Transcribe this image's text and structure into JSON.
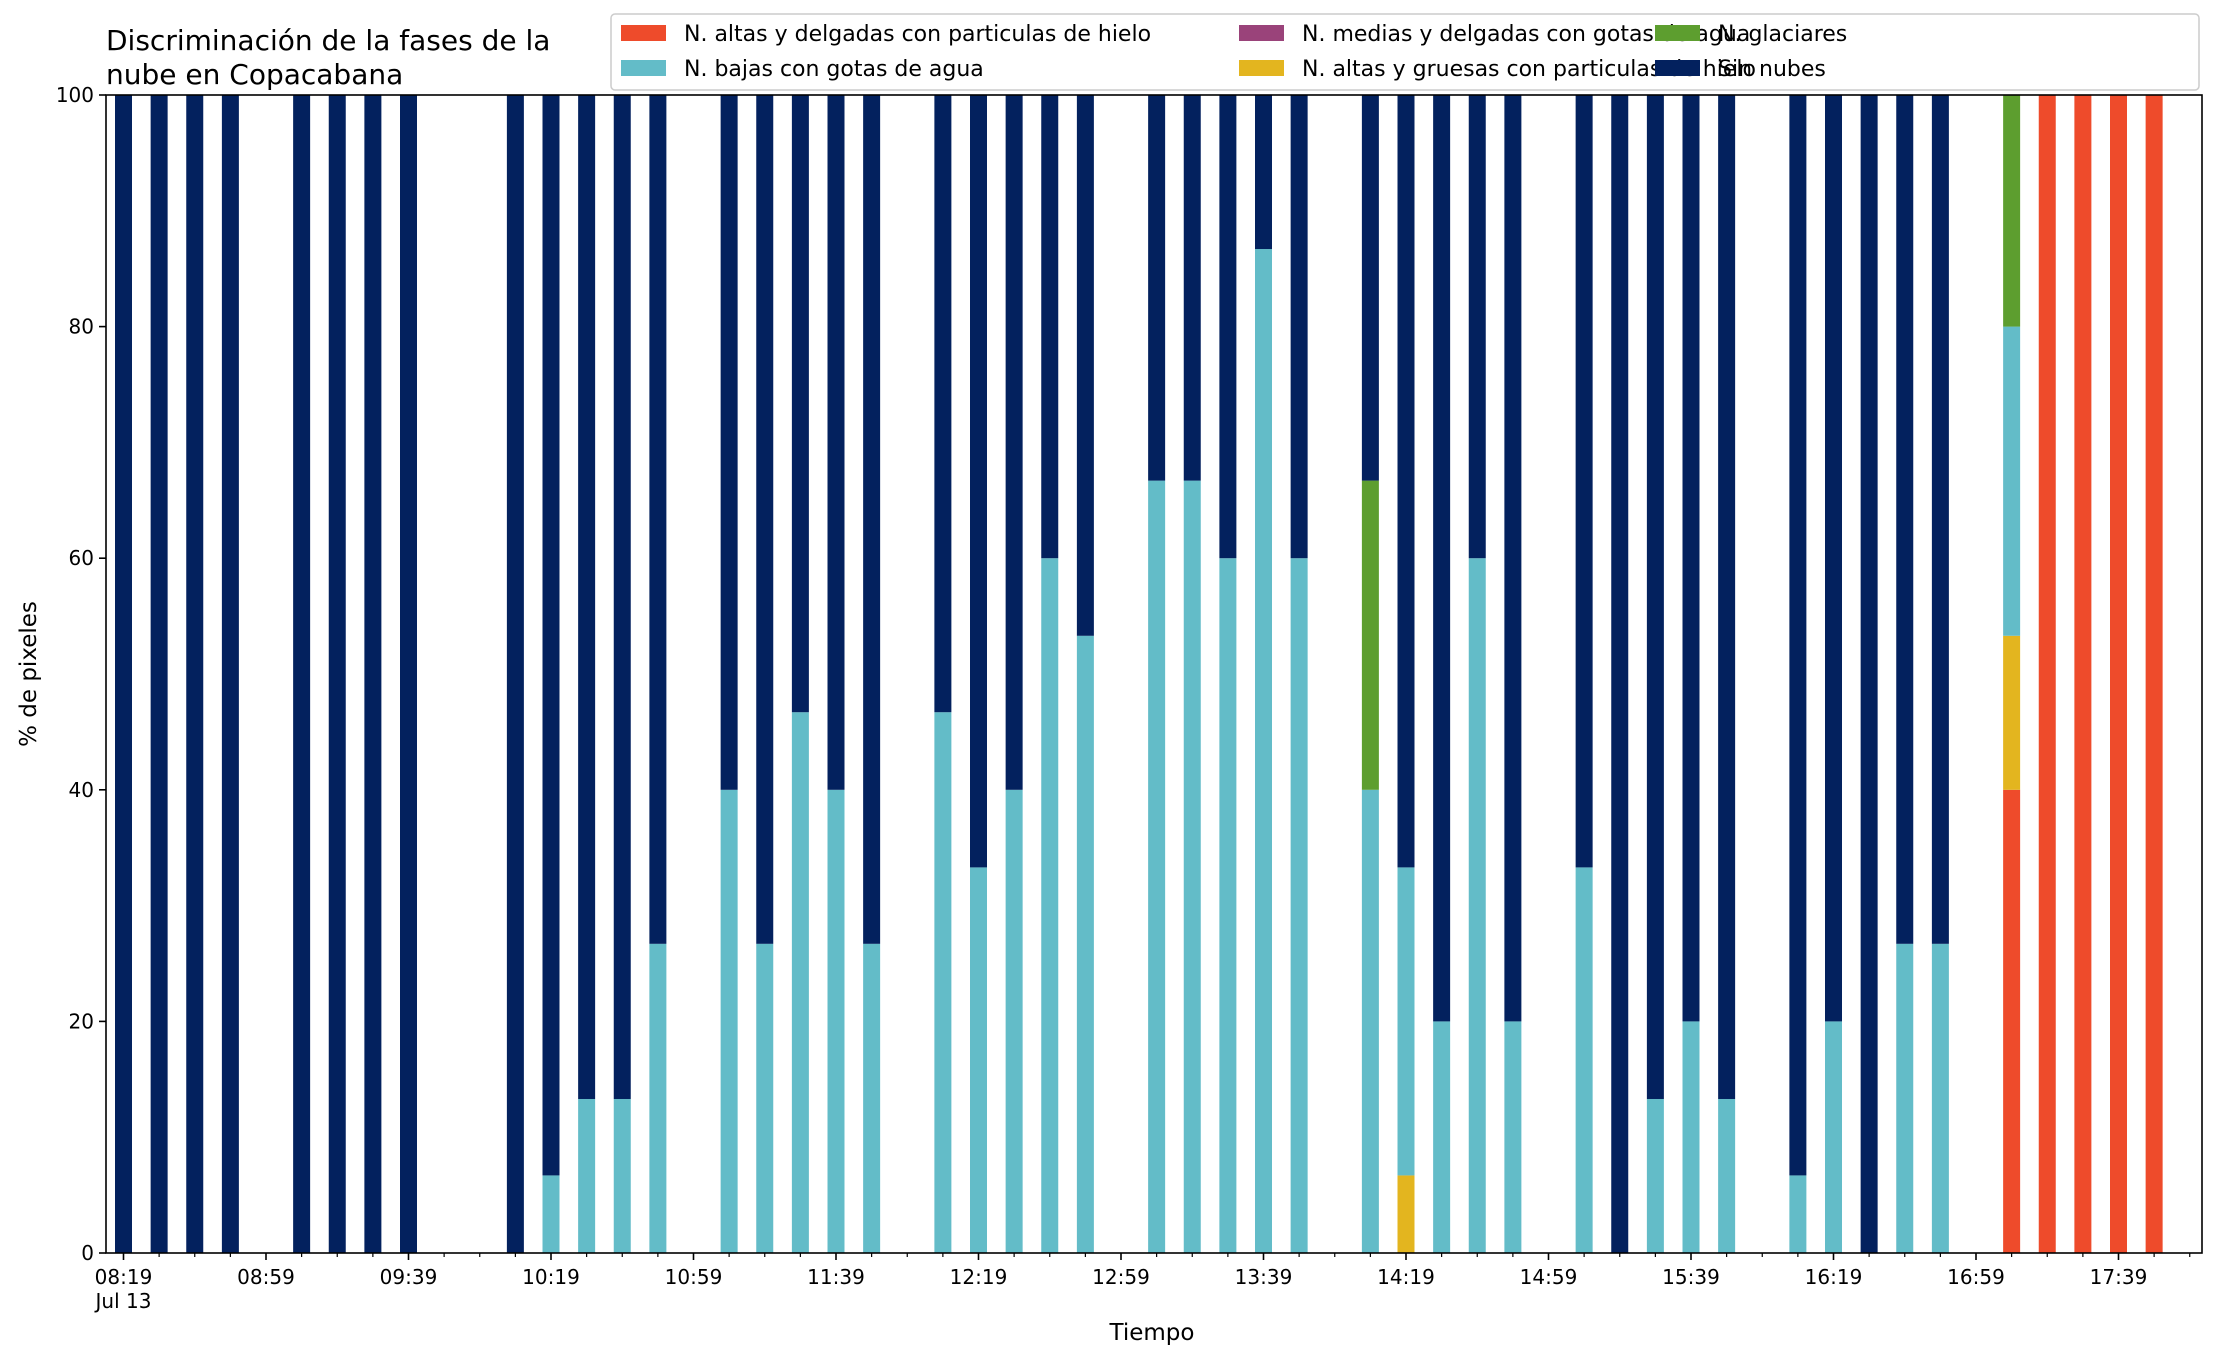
{
  "chart_data": {
    "type": "bar",
    "stacked": true,
    "title_lines": [
      "Discriminación de la fases de la",
      "nube en Copacabana"
    ],
    "xlabel": "Tiempo",
    "ylabel": "% de pixeles",
    "ylim": [
      0,
      100
    ],
    "yticks": [
      0,
      20,
      40,
      60,
      80,
      100
    ],
    "xlim_minutes": [
      0,
      580
    ],
    "x_tick_labels": [
      {
        "t": 0,
        "label": "08:19",
        "sub": "Jul 13"
      },
      {
        "t": 40,
        "label": "08:59"
      },
      {
        "t": 80,
        "label": "09:39"
      },
      {
        "t": 120,
        "label": "10:19"
      },
      {
        "t": 160,
        "label": "10:59"
      },
      {
        "t": 200,
        "label": "11:39"
      },
      {
        "t": 240,
        "label": "12:19"
      },
      {
        "t": 280,
        "label": "12:59"
      },
      {
        "t": 320,
        "label": "13:39"
      },
      {
        "t": 360,
        "label": "14:19"
      },
      {
        "t": 400,
        "label": "14:59"
      },
      {
        "t": 440,
        "label": "15:39"
      },
      {
        "t": 480,
        "label": "16:19"
      },
      {
        "t": 520,
        "label": "16:59"
      },
      {
        "t": 560,
        "label": "17:39"
      }
    ],
    "legend_position": "top-right",
    "legend_order": [
      0,
      2,
      4,
      1,
      3,
      5
    ],
    "series": [
      {
        "name": "N. altas y delgadas con particulas de hielo",
        "color": "#ee4b2b"
      },
      {
        "name": "N. altas y gruesas con particulas de hielo",
        "color": "#e3b51f"
      },
      {
        "name": "N. bajas con gotas de agua",
        "color": "#63bcc8"
      },
      {
        "name": "N. glaciares",
        "color": "#5d9e2f"
      },
      {
        "name": "N. medias y delgadas con gotas de agua",
        "color": "#9a437a"
      },
      {
        "name": "Sin nubes",
        "color": "#03215e"
      }
    ],
    "x": [
      "08:19",
      "08:29",
      "08:39",
      "08:49",
      "09:09",
      "09:19",
      "09:29",
      "09:39",
      "10:09",
      "10:19",
      "10:29",
      "10:39",
      "10:49",
      "11:09",
      "11:19",
      "11:29",
      "11:39",
      "11:49",
      "12:09",
      "12:19",
      "12:29",
      "12:39",
      "12:49",
      "13:09",
      "13:19",
      "13:29",
      "13:39",
      "13:49",
      "14:09",
      "14:19",
      "14:29",
      "14:39",
      "14:49",
      "15:09",
      "15:19",
      "15:29",
      "15:39",
      "15:49",
      "16:09",
      "16:19",
      "16:29",
      "16:39",
      "16:49",
      "17:09",
      "17:19",
      "17:29",
      "17:39",
      "17:49"
    ],
    "values": [
      [
        0,
        0,
        0,
        0,
        0,
        100
      ],
      [
        0,
        0,
        0,
        0,
        0,
        100
      ],
      [
        0,
        0,
        0,
        0,
        0,
        100
      ],
      [
        0,
        0,
        0,
        0,
        0,
        100
      ],
      [
        0,
        0,
        0,
        0,
        0,
        100
      ],
      [
        0,
        0,
        0,
        0,
        0,
        100
      ],
      [
        0,
        0,
        0,
        0,
        0,
        100
      ],
      [
        0,
        0,
        0,
        0,
        0,
        100
      ],
      [
        0,
        0,
        0,
        0,
        0,
        100
      ],
      [
        0,
        0,
        6.7,
        0,
        0,
        93.3
      ],
      [
        0,
        0,
        13.3,
        0,
        0,
        86.7
      ],
      [
        0,
        0,
        13.3,
        0,
        0,
        86.7
      ],
      [
        0,
        0,
        26.7,
        0,
        0,
        73.3
      ],
      [
        0,
        0,
        40,
        0,
        0,
        60
      ],
      [
        0,
        0,
        26.7,
        0,
        0,
        73.3
      ],
      [
        0,
        0,
        46.7,
        0,
        0,
        53.3
      ],
      [
        0,
        0,
        40,
        0,
        0,
        60
      ],
      [
        0,
        0,
        26.7,
        0,
        0,
        73.3
      ],
      [
        0,
        0,
        46.7,
        0,
        0,
        53.3
      ],
      [
        0,
        0,
        33.3,
        0,
        0,
        66.7
      ],
      [
        0,
        0,
        40,
        0,
        0,
        60
      ],
      [
        0,
        0,
        60,
        0,
        0,
        40
      ],
      [
        0,
        0,
        53.3,
        0,
        0,
        46.7
      ],
      [
        0,
        0,
        66.7,
        0,
        0,
        33.3
      ],
      [
        0,
        0,
        66.7,
        0,
        0,
        33.3
      ],
      [
        0,
        0,
        60,
        0,
        0,
        40
      ],
      [
        0,
        0,
        86.7,
        0,
        0,
        13.3
      ],
      [
        0,
        0,
        60,
        0,
        0,
        40
      ],
      [
        0,
        0,
        40,
        26.7,
        0,
        33.3
      ],
      [
        0,
        6.7,
        26.6,
        0,
        0,
        66.7
      ],
      [
        0,
        0,
        20,
        0,
        0,
        80
      ],
      [
        0,
        0,
        60,
        0,
        0,
        40
      ],
      [
        0,
        0,
        20,
        0,
        0,
        80
      ],
      [
        0,
        0,
        33.3,
        0,
        0,
        66.7
      ],
      [
        0,
        0,
        0,
        0,
        0,
        100
      ],
      [
        0,
        0,
        13.3,
        0,
        0,
        86.7
      ],
      [
        0,
        0,
        20,
        0,
        0,
        80
      ],
      [
        0,
        0,
        13.3,
        0,
        0,
        86.7
      ],
      [
        0,
        0,
        6.7,
        0,
        0,
        93.3
      ],
      [
        0,
        0,
        20,
        0,
        0,
        80
      ],
      [
        0,
        0,
        0,
        0,
        0,
        100
      ],
      [
        0,
        0,
        26.7,
        0,
        0,
        73.3
      ],
      [
        0,
        0,
        26.7,
        0,
        0,
        73.3
      ],
      [
        40,
        13.3,
        26.7,
        20,
        0,
        0
      ],
      [
        100,
        0,
        0,
        0,
        0,
        0
      ],
      [
        100,
        0,
        0,
        0,
        0,
        0
      ],
      [
        100,
        0,
        0,
        0,
        0,
        0
      ],
      [
        100,
        0,
        0,
        0,
        0,
        0
      ]
    ]
  }
}
